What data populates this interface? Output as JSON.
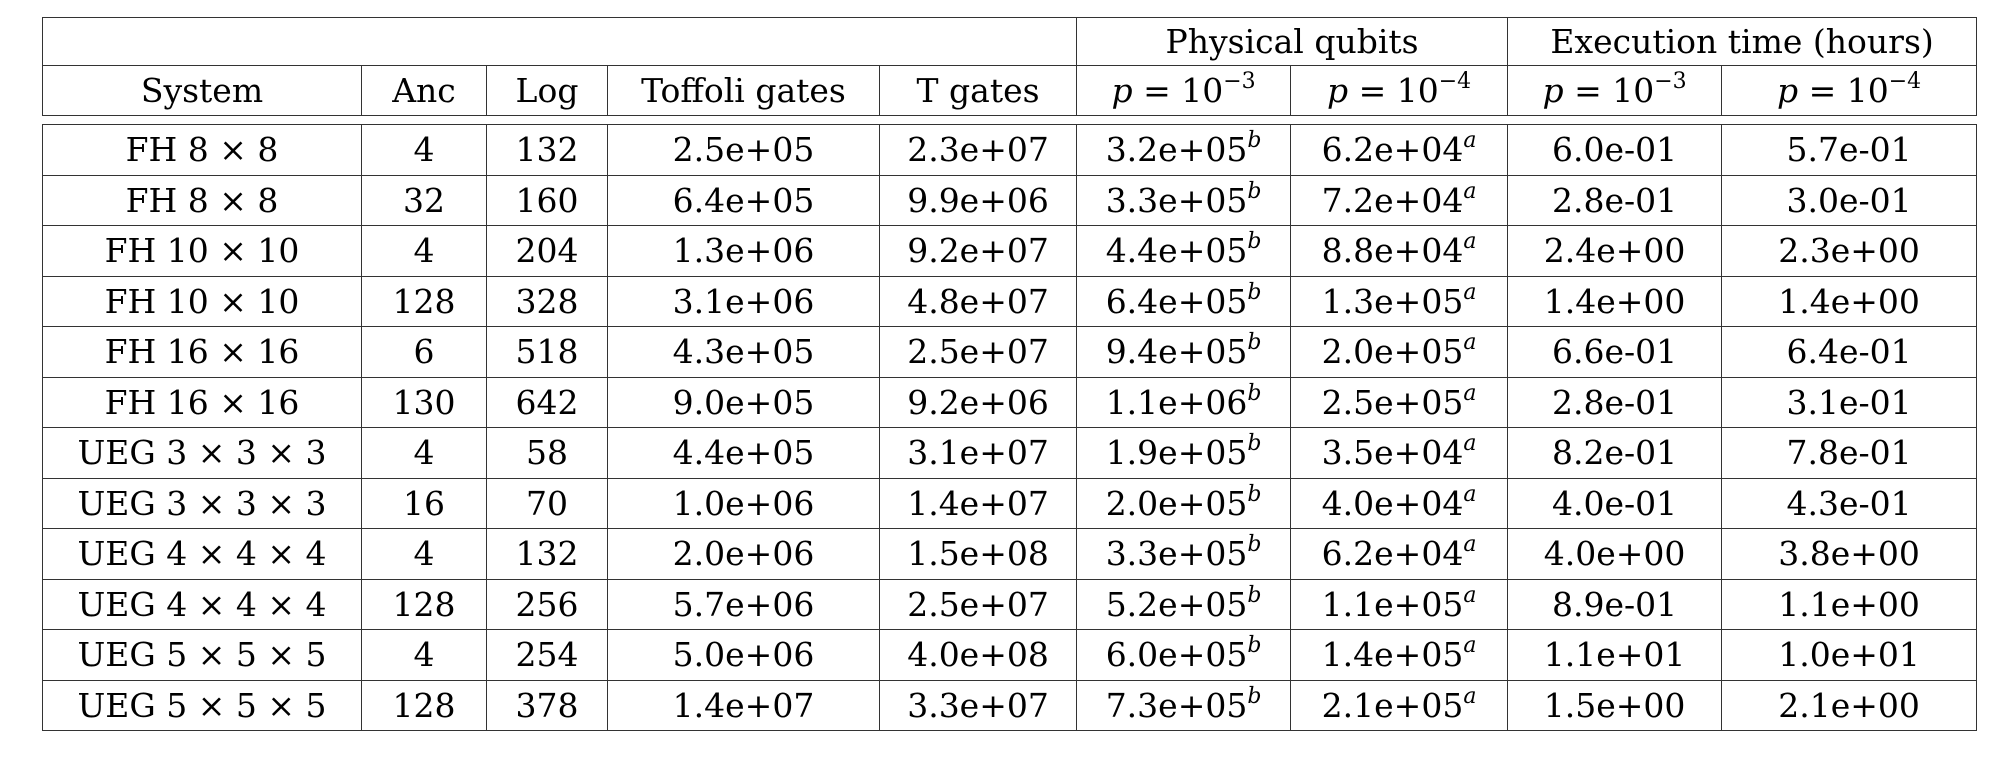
{
  "header": {
    "group_physical": "Physical qubits",
    "group_time": "Execution time (hours)",
    "columns": {
      "system": "System",
      "anc": "Anc",
      "log": "Log",
      "toffoli": "Toffoli gates",
      "t_gates": "T gates"
    },
    "p_var": "p",
    "p_eq": " = 10",
    "exp_3": "−3",
    "exp_4": "−4"
  },
  "rows": [
    {
      "system": "FH 8 × 8",
      "anc": "4",
      "log": "132",
      "toffoli": "2.5e+05",
      "t_gates": "2.3e+07",
      "pq3": "3.2e+05",
      "pq3_sup": "b",
      "pq4": "6.2e+04",
      "pq4_sup": "a",
      "t3": "6.0e-01",
      "t4": "5.7e-01"
    },
    {
      "system": "FH 8 × 8",
      "anc": "32",
      "log": "160",
      "toffoli": "6.4e+05",
      "t_gates": "9.9e+06",
      "pq3": "3.3e+05",
      "pq3_sup": "b",
      "pq4": "7.2e+04",
      "pq4_sup": "a",
      "t3": "2.8e-01",
      "t4": "3.0e-01"
    },
    {
      "system": "FH 10 × 10",
      "anc": "4",
      "log": "204",
      "toffoli": "1.3e+06",
      "t_gates": "9.2e+07",
      "pq3": "4.4e+05",
      "pq3_sup": "b",
      "pq4": "8.8e+04",
      "pq4_sup": "a",
      "t3": "2.4e+00",
      "t4": "2.3e+00"
    },
    {
      "system": "FH 10 × 10",
      "anc": "128",
      "log": "328",
      "toffoli": "3.1e+06",
      "t_gates": "4.8e+07",
      "pq3": "6.4e+05",
      "pq3_sup": "b",
      "pq4": "1.3e+05",
      "pq4_sup": "a",
      "t3": "1.4e+00",
      "t4": "1.4e+00"
    },
    {
      "system": "FH 16 × 16",
      "anc": "6",
      "log": "518",
      "toffoli": "4.3e+05",
      "t_gates": "2.5e+07",
      "pq3": "9.4e+05",
      "pq3_sup": "b",
      "pq4": "2.0e+05",
      "pq4_sup": "a",
      "t3": "6.6e-01",
      "t4": "6.4e-01"
    },
    {
      "system": "FH 16 × 16",
      "anc": "130",
      "log": "642",
      "toffoli": "9.0e+05",
      "t_gates": "9.2e+06",
      "pq3": "1.1e+06",
      "pq3_sup": "b",
      "pq4": "2.5e+05",
      "pq4_sup": "a",
      "t3": "2.8e-01",
      "t4": "3.1e-01"
    },
    {
      "system": "UEG 3 × 3 × 3",
      "anc": "4",
      "log": "58",
      "toffoli": "4.4e+05",
      "t_gates": "3.1e+07",
      "pq3": "1.9e+05",
      "pq3_sup": "b",
      "pq4": "3.5e+04",
      "pq4_sup": "a",
      "t3": "8.2e-01",
      "t4": "7.8e-01"
    },
    {
      "system": "UEG 3 × 3 × 3",
      "anc": "16",
      "log": "70",
      "toffoli": "1.0e+06",
      "t_gates": "1.4e+07",
      "pq3": "2.0e+05",
      "pq3_sup": "b",
      "pq4": "4.0e+04",
      "pq4_sup": "a",
      "t3": "4.0e-01",
      "t4": "4.3e-01"
    },
    {
      "system": "UEG 4 × 4 × 4",
      "anc": "4",
      "log": "132",
      "toffoli": "2.0e+06",
      "t_gates": "1.5e+08",
      "pq3": "3.3e+05",
      "pq3_sup": "b",
      "pq4": "6.2e+04",
      "pq4_sup": "a",
      "t3": "4.0e+00",
      "t4": "3.8e+00"
    },
    {
      "system": "UEG 4 × 4 × 4",
      "anc": "128",
      "log": "256",
      "toffoli": "5.7e+06",
      "t_gates": "2.5e+07",
      "pq3": "5.2e+05",
      "pq3_sup": "b",
      "pq4": "1.1e+05",
      "pq4_sup": "a",
      "t3": "8.9e-01",
      "t4": "1.1e+00"
    },
    {
      "system": "UEG 5 × 5 × 5",
      "anc": "4",
      "log": "254",
      "toffoli": "5.0e+06",
      "t_gates": "4.0e+08",
      "pq3": "6.0e+05",
      "pq3_sup": "b",
      "pq4": "1.4e+05",
      "pq4_sup": "a",
      "t3": "1.1e+01",
      "t4": "1.0e+01"
    },
    {
      "system": "UEG 5 × 5 × 5",
      "anc": "128",
      "log": "378",
      "toffoli": "1.4e+07",
      "t_gates": "3.3e+07",
      "pq3": "7.3e+05",
      "pq3_sup": "b",
      "pq4": "2.1e+05",
      "pq4_sup": "a",
      "t3": "1.5e+00",
      "t4": "2.1e+00"
    }
  ]
}
